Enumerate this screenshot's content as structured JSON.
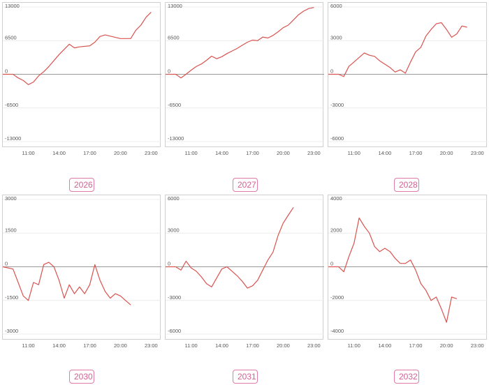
{
  "chart_data": [
    {
      "type": "line",
      "title": "2026",
      "ylim": [
        -13000,
        13000
      ],
      "yticks": [
        "13000",
        "6500",
        "0",
        "-6500",
        "-13000"
      ],
      "ytick_values": [
        13000,
        6500,
        0,
        -6500,
        -13000
      ],
      "xlim": [
        8.5,
        24
      ],
      "xticks": [
        "11:00",
        "14:00",
        "17:00",
        "20:00",
        "23:00"
      ],
      "xtick_values": [
        11,
        14,
        17,
        20,
        23
      ],
      "grid": true,
      "series": [
        {
          "x": [
            8.5,
            9.5,
            10,
            10.5,
            11,
            11.5,
            12,
            12.5,
            13,
            14,
            15,
            15.5,
            16,
            17,
            17.5,
            18,
            18.5,
            20,
            21,
            21.5,
            22,
            22.5,
            23
          ],
          "values": [
            0,
            0,
            -700,
            -1200,
            -2000,
            -1500,
            -300,
            500,
            1500,
            3800,
            5800,
            5100,
            5300,
            5500,
            6200,
            7300,
            7600,
            6900,
            6900,
            8500,
            9500,
            11000,
            12000
          ]
        }
      ]
    },
    {
      "type": "line",
      "title": "2027",
      "ylim": [
        -13000,
        13000
      ],
      "yticks": [
        "13000",
        "6500",
        "0",
        "-6500",
        "-13000"
      ],
      "ytick_values": [
        13000,
        6500,
        0,
        -6500,
        -13000
      ],
      "xlim": [
        8.5,
        24
      ],
      "xticks": [
        "11:00",
        "14:00",
        "17:00",
        "20:00",
        "23:00"
      ],
      "xtick_values": [
        11,
        14,
        17,
        20,
        23
      ],
      "grid": true,
      "series": [
        {
          "x": [
            8.5,
            9.5,
            10,
            10.5,
            11,
            11.5,
            12,
            12.5,
            13,
            13.5,
            14,
            14.5,
            15,
            15.5,
            16,
            16.5,
            17,
            17.5,
            18,
            18.5,
            19,
            19.5,
            20,
            20.5,
            21,
            21.5,
            22,
            22.5,
            23
          ],
          "values": [
            0,
            0,
            -700,
            0,
            800,
            1500,
            2000,
            2700,
            3500,
            3000,
            3400,
            4000,
            4500,
            5000,
            5600,
            6200,
            6600,
            6500,
            7200,
            7000,
            7500,
            8200,
            9000,
            9500,
            10500,
            11500,
            12200,
            12700,
            12900
          ]
        }
      ]
    },
    {
      "type": "line",
      "title": "2028",
      "ylim": [
        -6000,
        6000
      ],
      "yticks": [
        "6000",
        "3000",
        "0",
        "-3000",
        "-6000"
      ],
      "ytick_values": [
        6000,
        3000,
        0,
        -3000,
        -6000
      ],
      "xlim": [
        8.5,
        24
      ],
      "xticks": [
        "11:00",
        "14:00",
        "17:00",
        "20:00",
        "23:00"
      ],
      "xtick_values": [
        11,
        14,
        17,
        20,
        23
      ],
      "grid": true,
      "series": [
        {
          "x": [
            8.5,
            9.5,
            10,
            10.5,
            11,
            11.5,
            12,
            12.5,
            13,
            13.5,
            14,
            14.5,
            15,
            15.5,
            16,
            16.5,
            17,
            17.5,
            18,
            18.5,
            19,
            19.5,
            20,
            20.5,
            21,
            21.5,
            22
          ],
          "values": [
            0,
            0,
            -200,
            700,
            1100,
            1500,
            1900,
            1700,
            1600,
            1200,
            900,
            600,
            200,
            400,
            100,
            1100,
            2000,
            2400,
            3400,
            4000,
            4500,
            4600,
            4000,
            3300,
            3600,
            4300,
            4200
          ]
        }
      ]
    },
    {
      "type": "line",
      "title": "2030",
      "ylim": [
        -3000,
        3000
      ],
      "yticks": [
        "3000",
        "1500",
        "0",
        "-1500",
        "-3000"
      ],
      "ytick_values": [
        3000,
        1500,
        0,
        -1500,
        -3000
      ],
      "xlim": [
        8.5,
        24
      ],
      "xticks": [
        "11:00",
        "14:00",
        "17:00",
        "20:00",
        "23:00"
      ],
      "xtick_values": [
        11,
        14,
        17,
        20,
        23
      ],
      "grid": true,
      "series": [
        {
          "x": [
            8.5,
            9.5,
            10,
            10.5,
            11,
            11.5,
            12,
            12.5,
            13,
            13.5,
            14,
            14.5,
            15,
            15.5,
            16,
            16.5,
            17,
            17.5,
            18,
            18.5,
            19,
            19.5,
            20,
            20.5,
            21
          ],
          "values": [
            0,
            -100,
            -700,
            -1300,
            -1500,
            -700,
            -800,
            100,
            200,
            0,
            -600,
            -1400,
            -800,
            -1200,
            -900,
            -1200,
            -800,
            100,
            -600,
            -1100,
            -1400,
            -1200,
            -1300,
            -1500,
            -1700
          ]
        }
      ]
    },
    {
      "type": "line",
      "title": "2031",
      "ylim": [
        -6000,
        6000
      ],
      "yticks": [
        "6000",
        "3000",
        "0",
        "-3000",
        "-6000"
      ],
      "ytick_values": [
        6000,
        3000,
        0,
        -3000,
        -6000
      ],
      "xlim": [
        8.5,
        24
      ],
      "xticks": [
        "11:00",
        "14:00",
        "17:00",
        "20:00",
        "23:00"
      ],
      "xtick_values": [
        11,
        14,
        17,
        20,
        23
      ],
      "grid": true,
      "series": [
        {
          "x": [
            8.5,
            9.5,
            10,
            10.5,
            11,
            11.5,
            12,
            12.5,
            13,
            13.5,
            14,
            14.5,
            15,
            15.5,
            16,
            16.5,
            17,
            17.5,
            18,
            18.5,
            19,
            19.5,
            20,
            20.5,
            21
          ],
          "values": [
            0,
            0,
            -300,
            500,
            -100,
            -400,
            -900,
            -1500,
            -1800,
            -1000,
            -200,
            0,
            -400,
            -800,
            -1300,
            -1900,
            -1700,
            -1200,
            -300,
            600,
            1300,
            2800,
            3900,
            4600,
            5300
          ]
        }
      ]
    },
    {
      "type": "line",
      "title": "2032",
      "ylim": [
        -4000,
        4000
      ],
      "yticks": [
        "4000",
        "2000",
        "0",
        "-2000",
        "-4000"
      ],
      "ytick_values": [
        4000,
        2000,
        0,
        -2000,
        -4000
      ],
      "xlim": [
        8.5,
        24
      ],
      "xticks": [
        "11:00",
        "14:00",
        "17:00",
        "20:00",
        "23:00"
      ],
      "xtick_values": [
        11,
        14,
        17,
        20,
        23
      ],
      "grid": true,
      "series": [
        {
          "x": [
            8.5,
            9.5,
            10,
            10.5,
            11,
            11.5,
            12,
            12.5,
            13,
            13.5,
            14,
            14.5,
            15,
            15.5,
            16,
            16.5,
            17,
            17.5,
            18,
            18.5,
            19,
            19.5,
            20,
            20.5,
            21
          ],
          "values": [
            0,
            0,
            -300,
            600,
            1400,
            2900,
            2400,
            2000,
            1200,
            900,
            1100,
            900,
            500,
            200,
            200,
            400,
            -200,
            -1000,
            -1400,
            -2000,
            -1800,
            -2500,
            -3300,
            -1800,
            -1900
          ]
        }
      ]
    }
  ]
}
